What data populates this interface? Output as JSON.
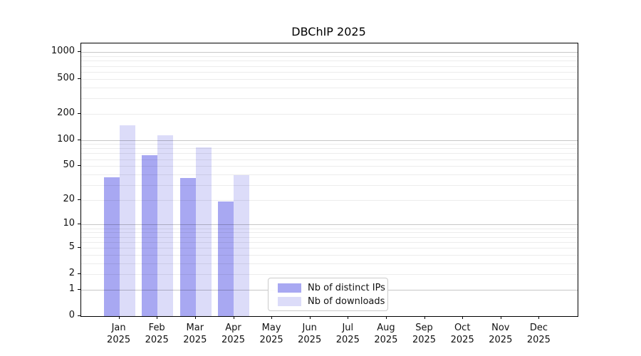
{
  "figure": {
    "background": "#ffffff"
  },
  "chart_data": {
    "type": "bar",
    "title": "DBChIP 2025",
    "scale": "pseudo-log: y position proportional to log10(1+value)",
    "categories": [
      "Jan",
      "Feb",
      "Mar",
      "Apr",
      "May",
      "Jun",
      "Jul",
      "Aug",
      "Sep",
      "Oct",
      "Nov",
      "Dec"
    ],
    "year": "2025",
    "series": [
      {
        "name": "Nb of distinct IPs",
        "color": "#a8a8f2",
        "values": [
          37,
          67,
          36,
          19,
          0,
          0,
          0,
          0,
          0,
          0,
          0,
          0
        ]
      },
      {
        "name": "Nb of downloads",
        "color": "#dcdcf9",
        "values": [
          146,
          112,
          82,
          39,
          0,
          0,
          0,
          0,
          0,
          0,
          0,
          0
        ]
      }
    ],
    "yticks": [
      0,
      1,
      2,
      5,
      10,
      20,
      50,
      100,
      200,
      500,
      1000
    ],
    "ylim": [
      0,
      1270
    ],
    "xlabel": "",
    "ylabel": "",
    "grid": true,
    "grid_major_values": [
      1,
      10,
      100,
      1000
    ],
    "legend_position": "inside lower-center",
    "colors": {
      "grid_major": "#c7c7c7",
      "grid_minor": "#ececec",
      "spine": "#000000",
      "tick_text": "#111111",
      "legend_border": "#cccccc"
    }
  }
}
